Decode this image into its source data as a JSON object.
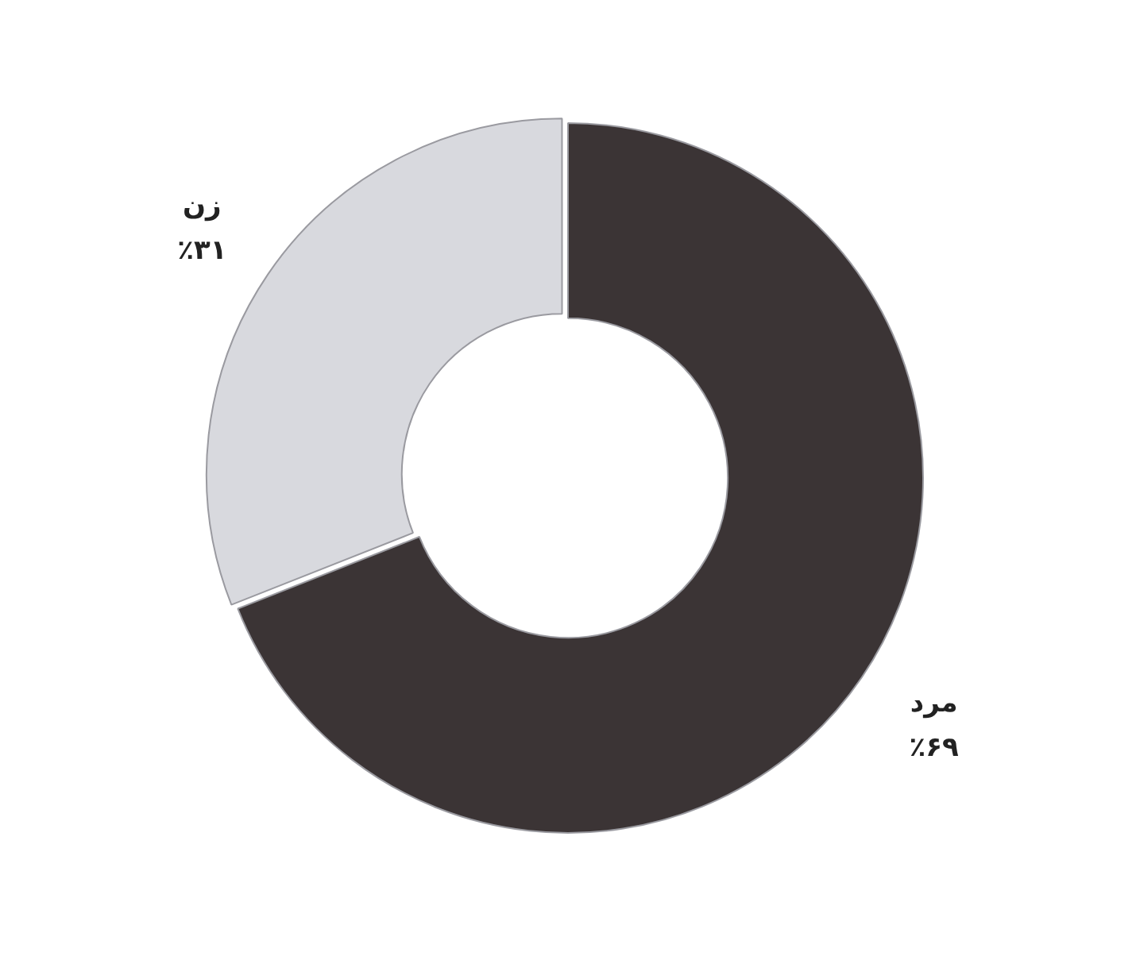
{
  "chart_data": {
    "type": "donut",
    "categories": [
      "مرد",
      "زن"
    ],
    "values": [
      69,
      31
    ],
    "colors": [
      "#3b3435",
      "#d8d9de"
    ],
    "value_labels": [
      "٪۶۹",
      "٪۳۱"
    ],
    "legend": false
  }
}
